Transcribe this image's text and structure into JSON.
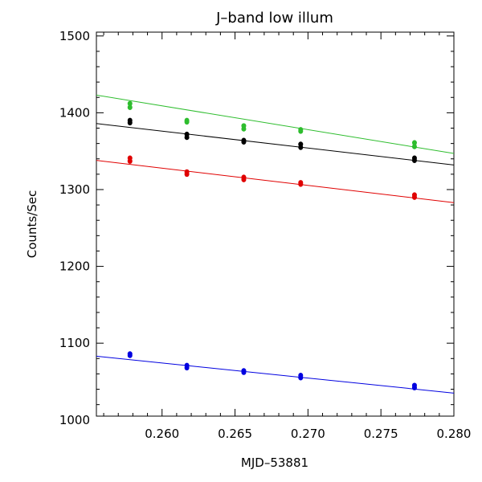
{
  "chart_data": {
    "type": "scatter",
    "title": "J–band low illum",
    "xlabel": "MJD–53881",
    "ylabel": "Counts/Sec",
    "xlim": [
      0.2555,
      0.28
    ],
    "ylim": [
      1005,
      1505
    ],
    "x_ticks": [
      0.26,
      0.265,
      0.27,
      0.275,
      0.28
    ],
    "x_tick_labels": [
      "0.260",
      "0.265",
      "0.270",
      "0.275",
      "0.280"
    ],
    "y_ticks": [
      1000,
      1100,
      1200,
      1300,
      1400,
      1500
    ],
    "y_tick_labels": [
      "1000",
      "1100",
      "1200",
      "1300",
      "1400",
      "1500"
    ],
    "grid": false,
    "legend": "none",
    "series": [
      {
        "color": "#2ebd2e",
        "points": [
          {
            "x": 0.2578,
            "y": 1412
          },
          {
            "x": 0.2578,
            "y": 1407
          },
          {
            "x": 0.2617,
            "y": 1390
          },
          {
            "x": 0.2617,
            "y": 1388
          },
          {
            "x": 0.2656,
            "y": 1383
          },
          {
            "x": 0.2656,
            "y": 1379
          },
          {
            "x": 0.2695,
            "y": 1378
          },
          {
            "x": 0.2695,
            "y": 1376
          },
          {
            "x": 0.2773,
            "y": 1361
          },
          {
            "x": 0.2773,
            "y": 1356
          }
        ],
        "fit": [
          {
            "x": 0.2555,
            "y": 1423
          },
          {
            "x": 0.28,
            "y": 1347
          }
        ]
      },
      {
        "color": "#000000",
        "points": [
          {
            "x": 0.2578,
            "y": 1390
          },
          {
            "x": 0.2578,
            "y": 1387
          },
          {
            "x": 0.2617,
            "y": 1372
          },
          {
            "x": 0.2617,
            "y": 1368
          },
          {
            "x": 0.2656,
            "y": 1364
          },
          {
            "x": 0.2656,
            "y": 1362
          },
          {
            "x": 0.2695,
            "y": 1359
          },
          {
            "x": 0.2695,
            "y": 1355
          },
          {
            "x": 0.2773,
            "y": 1341
          },
          {
            "x": 0.2773,
            "y": 1338
          }
        ],
        "fit": [
          {
            "x": 0.2555,
            "y": 1386
          },
          {
            "x": 0.28,
            "y": 1332
          }
        ]
      },
      {
        "color": "#e00000",
        "points": [
          {
            "x": 0.2578,
            "y": 1341
          },
          {
            "x": 0.2578,
            "y": 1337
          },
          {
            "x": 0.2617,
            "y": 1323
          },
          {
            "x": 0.2617,
            "y": 1320
          },
          {
            "x": 0.2656,
            "y": 1316
          },
          {
            "x": 0.2656,
            "y": 1313
          },
          {
            "x": 0.2695,
            "y": 1309
          },
          {
            "x": 0.2695,
            "y": 1307
          },
          {
            "x": 0.2773,
            "y": 1293
          },
          {
            "x": 0.2773,
            "y": 1290
          }
        ],
        "fit": [
          {
            "x": 0.2555,
            "y": 1338
          },
          {
            "x": 0.28,
            "y": 1283
          }
        ]
      },
      {
        "color": "#0000e0",
        "points": [
          {
            "x": 0.2578,
            "y": 1086
          },
          {
            "x": 0.2578,
            "y": 1084
          },
          {
            "x": 0.2617,
            "y": 1071
          },
          {
            "x": 0.2617,
            "y": 1068
          },
          {
            "x": 0.2656,
            "y": 1064
          },
          {
            "x": 0.2656,
            "y": 1062
          },
          {
            "x": 0.2695,
            "y": 1058
          },
          {
            "x": 0.2695,
            "y": 1055
          },
          {
            "x": 0.2773,
            "y": 1045
          },
          {
            "x": 0.2773,
            "y": 1042
          }
        ],
        "fit": [
          {
            "x": 0.2555,
            "y": 1083
          },
          {
            "x": 0.28,
            "y": 1035
          }
        ]
      }
    ]
  }
}
